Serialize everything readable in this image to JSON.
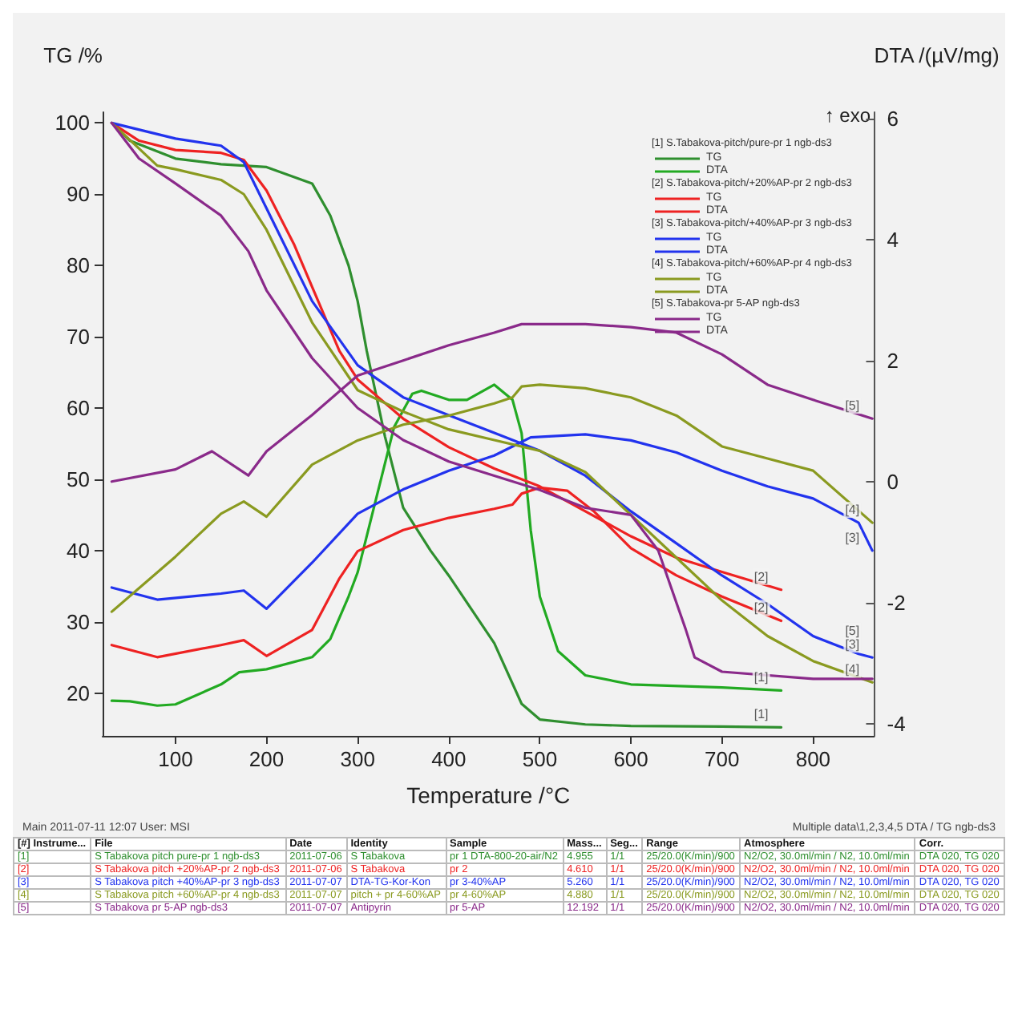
{
  "chart_data": {
    "type": "line",
    "xlabel": "Temperature /°C",
    "ylabel": "TG /%",
    "y2label": "DTA /(µV/mg)",
    "xlim": [
      20,
      867
    ],
    "xticks": [
      100,
      200,
      300,
      400,
      500,
      600,
      700,
      800
    ],
    "ylim": [
      14,
      101.5
    ],
    "yticks": [
      20,
      30,
      40,
      50,
      60,
      70,
      80,
      90,
      100
    ],
    "y2lim": [
      -4.2,
      6.1
    ],
    "y2ticks": [
      -4,
      -2,
      0,
      2,
      4,
      6
    ],
    "legend": "top right",
    "grid": false,
    "series": [
      {
        "name": "TG",
        "color": "#2f8f2f",
        "x": [
          30,
          50,
          100,
          150,
          200,
          250,
          270,
          290,
          300,
          310,
          320,
          330,
          350,
          380,
          400,
          450,
          480,
          500,
          550,
          600,
          700,
          765
        ],
        "values": [
          100,
          97.5,
          95,
          94.2,
          93.8,
          91.5,
          87,
          80,
          75,
          68,
          62,
          56,
          46,
          40,
          36.5,
          27,
          18.5,
          16.3,
          15.6,
          15.4,
          15.3,
          15.2
        ]
      },
      {
        "name": "DTA",
        "color": "#22aa22",
        "axis": "y2",
        "x": [
          30,
          50,
          80,
          100,
          150,
          170,
          200,
          250,
          270,
          290,
          300,
          320,
          340,
          360,
          370,
          400,
          420,
          450,
          470,
          480,
          490,
          500,
          520,
          550,
          600,
          700,
          765
        ],
        "values": [
          -3.62,
          -3.63,
          -3.7,
          -3.68,
          -3.35,
          -3.15,
          -3.1,
          -2.9,
          -2.6,
          -1.9,
          -1.5,
          -0.3,
          0.9,
          1.45,
          1.5,
          1.35,
          1.35,
          1.6,
          1.35,
          0.8,
          -0.8,
          -1.9,
          -2.8,
          -3.2,
          -3.35,
          -3.4,
          -3.45
        ]
      },
      {
        "name": "TG",
        "color": "#ee2222",
        "x": [
          30,
          60,
          100,
          150,
          175,
          200,
          230,
          250,
          280,
          300,
          350,
          400,
          450,
          500,
          550,
          600,
          650,
          700,
          765
        ],
        "values": [
          100,
          97.5,
          96.2,
          95.8,
          94.8,
          90.5,
          83,
          77,
          68,
          64,
          58.5,
          54.5,
          51.5,
          49,
          45.5,
          42,
          39,
          37,
          34.5
        ]
      },
      {
        "name": "DTA",
        "color": "#ee2222",
        "axis": "y2",
        "x": [
          30,
          80,
          150,
          175,
          200,
          250,
          280,
          300,
          350,
          400,
          450,
          470,
          480,
          500,
          530,
          560,
          600,
          650,
          700,
          765
        ],
        "values": [
          -2.7,
          -2.9,
          -2.7,
          -2.62,
          -2.88,
          -2.45,
          -1.6,
          -1.15,
          -0.8,
          -0.6,
          -0.45,
          -0.38,
          -0.2,
          -0.1,
          -0.15,
          -0.5,
          -1.1,
          -1.55,
          -1.9,
          -2.3
        ]
      },
      {
        "name": "TG",
        "color": "#2233ee",
        "x": [
          30,
          100,
          150,
          175,
          200,
          250,
          300,
          350,
          400,
          450,
          500,
          550,
          600,
          650,
          700,
          750,
          800,
          850,
          865
        ],
        "values": [
          100,
          97.8,
          96.8,
          94.5,
          88,
          75,
          66,
          61.5,
          59,
          56.5,
          54,
          50.5,
          45.5,
          41,
          36.5,
          32.5,
          28,
          25.5,
          25
        ]
      },
      {
        "name": "DTA",
        "color": "#2233ee",
        "axis": "y2",
        "x": [
          30,
          80,
          150,
          175,
          200,
          250,
          300,
          350,
          400,
          450,
          470,
          490,
          550,
          600,
          650,
          700,
          750,
          800,
          850,
          865
        ],
        "values": [
          -1.75,
          -1.95,
          -1.85,
          -1.8,
          -2.1,
          -1.34,
          -0.53,
          -0.13,
          0.18,
          0.43,
          0.58,
          0.73,
          0.78,
          0.68,
          0.48,
          0.18,
          -0.08,
          -0.28,
          -0.68,
          -1.14
        ]
      },
      {
        "name": "TG",
        "color": "#8a9a20",
        "x": [
          30,
          80,
          100,
          150,
          175,
          200,
          250,
          300,
          350,
          400,
          450,
          500,
          550,
          600,
          650,
          700,
          750,
          800,
          865
        ],
        "values": [
          100,
          94,
          93.5,
          92,
          90,
          85,
          72,
          62.5,
          59.5,
          57,
          55.5,
          54,
          51,
          45,
          39,
          33,
          28,
          24.5,
          21.5
        ]
      },
      {
        "name": "DTA",
        "color": "#8a9a20",
        "axis": "y2",
        "x": [
          30,
          100,
          150,
          175,
          200,
          250,
          300,
          350,
          400,
          450,
          470,
          480,
          500,
          550,
          600,
          650,
          700,
          750,
          800,
          865
        ],
        "values": [
          -2.15,
          -1.24,
          -0.53,
          -0.33,
          -0.58,
          0.28,
          0.68,
          0.94,
          1.09,
          1.29,
          1.39,
          1.57,
          1.6,
          1.54,
          1.39,
          1.09,
          0.58,
          0.38,
          0.18,
          -0.68
        ]
      },
      {
        "name": "TG",
        "color": "#8a2a8a",
        "x": [
          30,
          60,
          100,
          150,
          180,
          200,
          250,
          300,
          350,
          400,
          450,
          500,
          550,
          600,
          630,
          660,
          670,
          700,
          800,
          865
        ],
        "values": [
          100,
          95,
          91.5,
          87,
          82,
          76.5,
          67,
          60,
          55.5,
          52.5,
          50.5,
          48.5,
          46,
          45,
          40,
          29,
          25,
          23,
          22,
          22
        ]
      },
      {
        "name": "DTA",
        "color": "#8a2a8a",
        "axis": "y2",
        "x": [
          30,
          100,
          140,
          180,
          200,
          250,
          300,
          350,
          400,
          450,
          480,
          550,
          600,
          650,
          700,
          750,
          800,
          865
        ],
        "values": [
          0,
          0.2,
          0.5,
          0.1,
          0.5,
          1.1,
          1.75,
          2,
          2.25,
          2.46,
          2.6,
          2.6,
          2.55,
          2.46,
          2.1,
          1.6,
          1.35,
          1.04
        ]
      }
    ],
    "annotations": [
      "[1] S.Tabakova-pitch/pure-pr 1 ngb-ds3",
      "[2] S.Tabakova-pitch/+20%AP-pr 2 ngb-ds3",
      "[3] S.Tabakova-pitch/+40%AP-pr 3 ngb-ds3",
      "[4] S.Tabakova-pitch/+60%AP-pr 4 ngb-ds3",
      "[5] S.Tabakova-pr 5-AP ngb-ds3",
      "↑ exo",
      "Main 2011-07-11 12:07 User: MSI",
      "Multiple data\\1,2,3,4,5 DTA / TG ngb-ds3",
      "[#] Instrume...",
      "File",
      "Date",
      "Identity",
      "Sample",
      "Mass...",
      "Seg...",
      "Range",
      "Atmosphere",
      "Corr.",
      "[1]",
      "S Tabakova pitch pure-pr 1 ngb-ds3",
      "2011-07-06",
      "S Tabakova",
      "pr 1 DTA-800-20-air/N2",
      "4.955",
      "1/1",
      "25/20.0(K/min)/900",
      "N2/O2, 30.0ml/min / N2, 10.0ml/min",
      "DTA 020, TG 020",
      "[2]",
      "S Tabakova pitch +20%AP-pr 2 ngb-ds3",
      "2011-07-06",
      "S Tabakova",
      "pr 2",
      "4.610",
      "1/1",
      "25/20.0(K/min)/900",
      "N2/O2, 30.0ml/min / N2, 10.0ml/min",
      "DTA 020, TG 020",
      "[3]",
      "S Tabakova pitch +40%AP-pr 3 ngb-ds3",
      "2011-07-07",
      "DTA-TG-Kor-Kon",
      "pr 3-40%AP",
      "5.260",
      "1/1",
      "25/20.0(K/min)/900",
      "N2/O2, 30.0ml/min / N2, 10.0ml/min",
      "DTA 020, TG 020",
      "[4]",
      "S Tabakova pitch +60%AP-pr 4 ngb-ds3",
      "2011-07-07",
      "pitch + pr 4-60%AP",
      "pr 4-60%AP",
      "4.880",
      "1/1",
      "25/20.0(K/min)/900",
      "N2/O2, 30.0ml/min / N2, 10.0ml/min",
      "DTA 020, TG 020",
      "[5]",
      "S Tabakova pr 5-AP ngb-ds3",
      "2011-07-07",
      "Antipyrin",
      "pr 5-AP",
      "12.192",
      "1/1",
      "25/20.0(K/min)/900",
      "N2/O2, 30.0ml/min / N2, 10.0ml/min",
      "DTA 020, TG 020",
      "[1]",
      "[1]",
      "[2]",
      "[2]",
      "[3]",
      "[3]",
      "[4]",
      "[4]",
      "[5]",
      "[5]"
    ]
  }
}
